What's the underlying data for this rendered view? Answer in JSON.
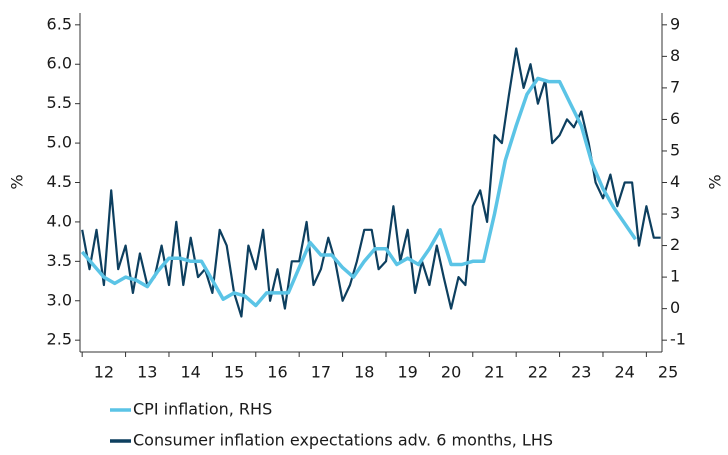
{
  "chart_data": {
    "type": "line",
    "y_label": "%",
    "y2_label": "%",
    "xlim": [
      2011.95,
      2025.36
    ],
    "xticks": [
      {
        "value": 2012.5,
        "label": "12"
      },
      {
        "value": 2013.5,
        "label": "13"
      },
      {
        "value": 2014.5,
        "label": "14"
      },
      {
        "value": 2015.5,
        "label": "15"
      },
      {
        "value": 2016.5,
        "label": "16"
      },
      {
        "value": 2017.5,
        "label": "17"
      },
      {
        "value": 2018.5,
        "label": "18"
      },
      {
        "value": 2019.5,
        "label": "19"
      },
      {
        "value": 2020.5,
        "label": "20"
      },
      {
        "value": 2021.5,
        "label": "21"
      },
      {
        "value": 2022.5,
        "label": "22"
      },
      {
        "value": 2023.5,
        "label": "23"
      },
      {
        "value": 2024.5,
        "label": "24"
      },
      {
        "value": 2025.5,
        "label": "25"
      }
    ],
    "ylim": [
      2.35,
      6.65
    ],
    "yticks": [
      {
        "value": 2.5,
        "label": "2.5"
      },
      {
        "value": 3,
        "label": "3.0"
      },
      {
        "value": 3.5,
        "label": "3.5"
      },
      {
        "value": 4,
        "label": "4.0"
      },
      {
        "value": 4.5,
        "label": "4.5"
      },
      {
        "value": 5,
        "label": "5.0"
      },
      {
        "value": 5.5,
        "label": "5.5"
      },
      {
        "value": 6,
        "label": "6.0"
      },
      {
        "value": 6.5,
        "label": "6.5"
      }
    ],
    "y2lim": [
      -1.375,
      9.375
    ],
    "y2ticks": [
      -1,
      0,
      1,
      2,
      3,
      4,
      5,
      6,
      7,
      8,
      9
    ],
    "series": [
      {
        "name": "CPI inflation, RHS",
        "color": "#5bc4e6",
        "axis": "y2",
        "x": [
          2012,
          2012.25,
          2012.5,
          2012.75,
          2013,
          2013.25,
          2013.5,
          2013.75,
          2014,
          2014.25,
          2014.5,
          2014.75,
          2015,
          2015.25,
          2015.5,
          2015.75,
          2016,
          2016.25,
          2016.5,
          2016.75,
          2017,
          2017.25,
          2017.5,
          2017.75,
          2018,
          2018.25,
          2018.5,
          2018.75,
          2019,
          2019.25,
          2019.5,
          2019.75,
          2020,
          2020.25,
          2020.5,
          2020.75,
          2021,
          2021.25,
          2021.5,
          2021.75,
          2022,
          2022.25,
          2022.5,
          2022.75,
          2023,
          2023.25,
          2023.5,
          2023.75,
          2024,
          2024.25,
          2024.5,
          2024.75
        ],
        "values": [
          1.8,
          1.4,
          1.0,
          0.8,
          1.0,
          0.9,
          0.7,
          1.2,
          1.6,
          1.6,
          1.5,
          1.5,
          0.9,
          0.3,
          0.5,
          0.4,
          0.1,
          0.5,
          0.5,
          0.5,
          1.3,
          2.1,
          1.7,
          1.7,
          1.3,
          1.0,
          1.5,
          1.9,
          1.9,
          1.4,
          1.6,
          1.4,
          1.9,
          2.5,
          1.4,
          1.4,
          1.5,
          1.5,
          3.0,
          4.7,
          5.8,
          6.8,
          7.3,
          7.2,
          7.2,
          6.5,
          5.8,
          4.6,
          3.8,
          3.2,
          2.7,
          2.2
        ]
      },
      {
        "name": "Consumer inflation expectations adv. 6 months, LHS",
        "color": "#0d3f5f",
        "x": [
          2012,
          2012.17,
          2012.33,
          2012.5,
          2012.67,
          2012.83,
          2013,
          2013.17,
          2013.33,
          2013.5,
          2013.67,
          2013.83,
          2014,
          2014.17,
          2014.33,
          2014.5,
          2014.67,
          2014.83,
          2015,
          2015.17,
          2015.33,
          2015.5,
          2015.67,
          2015.83,
          2016,
          2016.17,
          2016.33,
          2016.5,
          2016.67,
          2016.83,
          2017,
          2017.17,
          2017.33,
          2017.5,
          2017.67,
          2017.83,
          2018,
          2018.17,
          2018.33,
          2018.5,
          2018.67,
          2018.83,
          2019,
          2019.17,
          2019.33,
          2019.5,
          2019.67,
          2019.83,
          2020,
          2020.17,
          2020.33,
          2020.5,
          2020.67,
          2020.83,
          2021,
          2021.17,
          2021.33,
          2021.5,
          2021.67,
          2021.83,
          2022,
          2022.17,
          2022.33,
          2022.5,
          2022.67,
          2022.83,
          2023,
          2023.17,
          2023.33,
          2023.5,
          2023.67,
          2023.83,
          2024,
          2024.17,
          2024.33,
          2024.5,
          2024.67,
          2024.83,
          2025,
          2025.17,
          2025.33
        ],
        "values": [
          3.9,
          3.4,
          3.9,
          3.2,
          4.4,
          3.4,
          3.7,
          3.1,
          3.6,
          3.2,
          3.3,
          3.7,
          3.2,
          4.0,
          3.2,
          3.8,
          3.3,
          3.4,
          3.1,
          3.9,
          3.7,
          3.1,
          2.8,
          3.7,
          3.4,
          3.9,
          3.0,
          3.4,
          2.9,
          3.5,
          3.5,
          4.0,
          3.2,
          3.4,
          3.8,
          3.5,
          3.0,
          3.2,
          3.5,
          3.9,
          3.9,
          3.4,
          3.5,
          4.2,
          3.5,
          3.9,
          3.1,
          3.5,
          3.2,
          3.7,
          3.3,
          2.9,
          3.3,
          3.2,
          4.2,
          4.4,
          4.0,
          5.1,
          5.0,
          5.6,
          6.2,
          5.7,
          6.0,
          5.5,
          5.8,
          5.0,
          5.1,
          5.3,
          5.2,
          5.4,
          5.0,
          4.5,
          4.3,
          4.6,
          4.2,
          4.5,
          4.5,
          3.7,
          4.2,
          3.8,
          3.8
        ]
      }
    ]
  }
}
